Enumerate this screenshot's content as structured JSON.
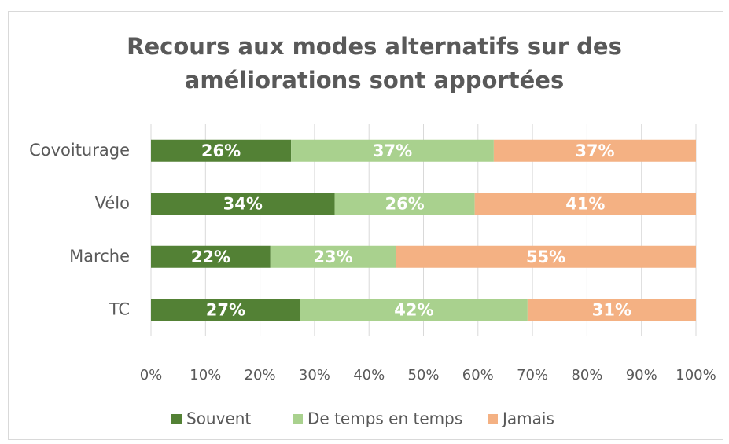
{
  "chart_data": {
    "type": "stacked_bar_horizontal",
    "title": "Recours aux modes alternatifs sur des améliorations sont apportées",
    "categories": [
      "Covoiturage",
      "Vélo",
      "Marche",
      "TC"
    ],
    "series": [
      {
        "name": "Souvent",
        "color": "#538135",
        "values": [
          25.7,
          33.7,
          21.9,
          27.4
        ],
        "value_labels": [
          "26%",
          "34%",
          "22%",
          "27%"
        ]
      },
      {
        "name": "De temps en temps",
        "color": "#a9d18e",
        "values": [
          37.2,
          25.7,
          23.0,
          41.7
        ],
        "value_labels": [
          "37%",
          "26%",
          "23%",
          "42%"
        ]
      },
      {
        "name": "Jamais",
        "color": "#f4b183",
        "values": [
          37.1,
          40.6,
          55.1,
          30.9
        ],
        "value_labels": [
          "37%",
          "41%",
          "55%",
          "31%"
        ]
      }
    ],
    "xlim": [
      0,
      100
    ],
    "xticks": [
      {
        "value": 0,
        "label": "0%"
      },
      {
        "value": 10,
        "label": "10%"
      },
      {
        "value": 20,
        "label": "20%"
      },
      {
        "value": 30,
        "label": "30%"
      },
      {
        "value": 40,
        "label": "40%"
      },
      {
        "value": 50,
        "label": "50%"
      },
      {
        "value": 60,
        "label": "60%"
      },
      {
        "value": 70,
        "label": "70%"
      },
      {
        "value": 80,
        "label": "80%"
      },
      {
        "value": 90,
        "label": "90%"
      },
      {
        "value": 100,
        "label": "100%"
      }
    ],
    "grid": true,
    "legend": "bottom"
  }
}
